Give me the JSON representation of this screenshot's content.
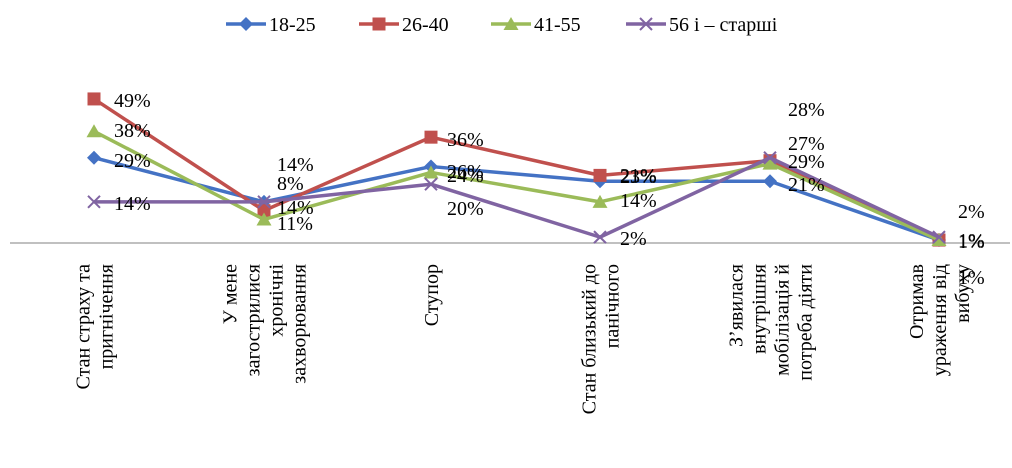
{
  "chart_data": {
    "type": "line",
    "title": "",
    "xlabel": "",
    "ylabel": "",
    "ylim": [
      0,
      50
    ],
    "grid": false,
    "legend_position": "top",
    "categories": [
      [
        "Стан страху та",
        "пригнічення"
      ],
      [
        "У мене",
        "загострилися",
        "хронічні",
        "захворювання"
      ],
      [
        "Ступор"
      ],
      [
        "Стан близький до",
        "панічного"
      ],
      [
        "З’явилася",
        "внутрішня",
        "мобілізація й",
        "потреба діяти"
      ],
      [
        "Отримав",
        "ураження від",
        "вибуху"
      ]
    ],
    "series": [
      {
        "name": "18-25",
        "color": "#4472C4",
        "marker": "diamond",
        "values": [
          29,
          14,
          26,
          21,
          21,
          1
        ],
        "labels": [
          "29%",
          "14%",
          "26%",
          "21%",
          "21%",
          "1%"
        ]
      },
      {
        "name": "26-40",
        "color": "#C0504D",
        "marker": "square",
        "values": [
          49,
          11,
          36,
          23,
          28,
          1
        ],
        "labels": [
          "49%",
          "11%",
          "36%",
          "23%",
          "28%",
          "1%"
        ]
      },
      {
        "name": "41-55",
        "color": "#9BBB59",
        "marker": "triangle",
        "values": [
          38,
          8,
          24,
          14,
          27,
          1
        ],
        "labels": [
          "38%",
          "8%",
          "24%",
          "14%",
          "27%",
          "1%"
        ]
      },
      {
        "name": "56 і – старші",
        "color": "#8064A2",
        "marker": "x",
        "values": [
          14,
          14,
          20,
          2,
          29,
          2
        ],
        "labels": [
          "14%",
          "14%",
          "20%",
          "2%",
          "29%",
          "2%"
        ]
      }
    ]
  }
}
